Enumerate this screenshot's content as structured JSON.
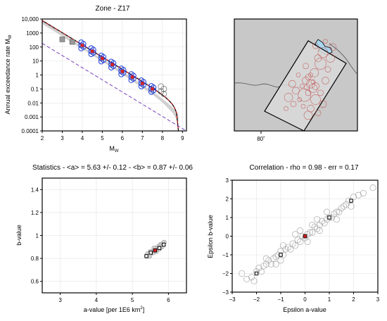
{
  "figure": {
    "title": "Zone - Z17",
    "colors": {
      "observed": "#1f3fd6",
      "mean_fit": "#d62020",
      "sample_gray": "#bdbdbd",
      "truncated": "#7a3fbf",
      "zone_fill": "#d9d9d9",
      "map_land": "#c8c8c8",
      "lake": "#a8d8f0"
    }
  },
  "chart_data": [
    {
      "id": "recurrence",
      "type": "scatter",
      "title": "Zone - Z17",
      "xlabel": "M",
      "xlabel_sub": "W",
      "ylabel": "Annual exceedance rate M",
      "ylabel_sub": "W",
      "xlim": [
        2,
        9.2
      ],
      "ylim": [
        0.0001,
        10000
      ],
      "yscale": "log",
      "xticks": [
        2,
        3,
        4,
        5,
        6,
        7,
        8,
        9
      ],
      "yticks": [
        {
          "v": 10000,
          "label": "10,000"
        },
        {
          "v": 1000,
          "label": "1000"
        },
        {
          "v": 100,
          "label": "100"
        },
        {
          "v": 10,
          "label": "10"
        },
        {
          "v": 1,
          "label": "1"
        },
        {
          "v": 0.1,
          "label": "0.1"
        },
        {
          "v": 0.01,
          "label": "0.01"
        },
        {
          "v": 0.001,
          "label": "0.001"
        },
        {
          "v": 0.0001,
          "label": "0.0001"
        }
      ],
      "grid": true,
      "mean_fit_line": {
        "a": 5.63,
        "b": 0.87,
        "mmax": 8.8
      },
      "sample_band": {
        "m": [
          2,
          3,
          4,
          5,
          6,
          7,
          7.5,
          8,
          8.5,
          8.8
        ],
        "lo": [
          4500,
          570,
          70,
          9,
          1.1,
          0.12,
          0.04,
          0.011,
          0.002,
          0.0004
        ],
        "hi": [
          7500,
          900,
          110,
          14,
          1.8,
          0.2,
          0.07,
          0.02,
          0.005,
          0.0015
        ]
      },
      "truncated_line": {
        "a": 4.0,
        "b": 0.87
      },
      "observed_points": [
        {
          "m": 3.0,
          "rate": 350,
          "level": "gray"
        },
        {
          "m": 3.5,
          "rate": 230,
          "level": "gray"
        },
        {
          "m": 4.0,
          "rate": 130
        },
        {
          "m": 4.5,
          "rate": 50
        },
        {
          "m": 5.0,
          "rate": 15
        },
        {
          "m": 5.5,
          "rate": 5.5
        },
        {
          "m": 6.0,
          "rate": 1.8
        },
        {
          "m": 6.5,
          "rate": 0.7
        },
        {
          "m": 7.0,
          "rate": 0.25
        },
        {
          "m": 7.5,
          "rate": 0.1
        },
        {
          "m": 8.0,
          "rate": 0.1,
          "level": "open"
        }
      ]
    },
    {
      "id": "map",
      "type": "map",
      "lon_label": "80˚",
      "epicenters": [
        {
          "x": 0.6,
          "y": 0.52,
          "r": 4
        },
        {
          "x": 0.62,
          "y": 0.5,
          "r": 3
        },
        {
          "x": 0.58,
          "y": 0.55,
          "r": 5
        },
        {
          "x": 0.65,
          "y": 0.48,
          "r": 6
        },
        {
          "x": 0.55,
          "y": 0.6,
          "r": 3
        },
        {
          "x": 0.7,
          "y": 0.4,
          "r": 8
        },
        {
          "x": 0.72,
          "y": 0.3,
          "r": 7
        },
        {
          "x": 0.68,
          "y": 0.35,
          "r": 5
        },
        {
          "x": 0.64,
          "y": 0.62,
          "r": 6
        },
        {
          "x": 0.6,
          "y": 0.66,
          "r": 4
        },
        {
          "x": 0.57,
          "y": 0.68,
          "r": 9
        },
        {
          "x": 0.74,
          "y": 0.55,
          "r": 5
        },
        {
          "x": 0.76,
          "y": 0.45,
          "r": 4
        },
        {
          "x": 0.53,
          "y": 0.72,
          "r": 3
        },
        {
          "x": 0.5,
          "y": 0.64,
          "r": 5
        },
        {
          "x": 0.66,
          "y": 0.72,
          "r": 7
        },
        {
          "x": 0.7,
          "y": 0.66,
          "r": 4
        },
        {
          "x": 0.62,
          "y": 0.8,
          "r": 5
        },
        {
          "x": 0.56,
          "y": 0.78,
          "r": 3
        },
        {
          "x": 0.48,
          "y": 0.76,
          "r": 4
        },
        {
          "x": 0.44,
          "y": 0.7,
          "r": 6
        },
        {
          "x": 0.78,
          "y": 0.35,
          "r": 6
        },
        {
          "x": 0.66,
          "y": 0.24,
          "r": 4
        },
        {
          "x": 0.74,
          "y": 0.2,
          "r": 3
        },
        {
          "x": 0.8,
          "y": 0.25,
          "r": 5
        },
        {
          "x": 0.58,
          "y": 0.42,
          "r": 4
        },
        {
          "x": 0.52,
          "y": 0.5,
          "r": 3
        },
        {
          "x": 0.47,
          "y": 0.58,
          "r": 5
        },
        {
          "x": 0.6,
          "y": 0.86,
          "r": 6
        },
        {
          "x": 0.68,
          "y": 0.84,
          "r": 4
        },
        {
          "x": 0.42,
          "y": 0.8,
          "r": 3
        },
        {
          "x": 0.72,
          "y": 0.76,
          "r": 5
        },
        {
          "x": 0.64,
          "y": 0.56,
          "r": 3
        },
        {
          "x": 0.66,
          "y": 0.6,
          "r": 5
        },
        {
          "x": 0.62,
          "y": 0.58,
          "r": 6
        },
        {
          "x": 0.59,
          "y": 0.61,
          "r": 4
        }
      ]
    },
    {
      "id": "ab_scatter",
      "type": "scatter",
      "title": "Statistics - <a> = 5.63 +/- 0.12 - <b> = 0.87 +/- 0.06",
      "xlabel": "a-value [per 1E6 km",
      "xlabel_sup": "2",
      "xlabel_tail": "]",
      "ylabel": "b-value",
      "xlim": [
        2.5,
        6.5
      ],
      "ylim": [
        0.5,
        1.5
      ],
      "xticks": [
        3,
        4,
        5,
        6
      ],
      "yticks": [
        0.6,
        0.8,
        1.0,
        1.2,
        1.4
      ],
      "ytick_labels": [
        "0.6",
        "0.8",
        "1",
        "1.2",
        "1.4"
      ],
      "grid": true,
      "samples": [
        [
          5.4,
          0.82
        ],
        [
          5.45,
          0.83
        ],
        [
          5.5,
          0.84
        ],
        [
          5.52,
          0.85
        ],
        [
          5.55,
          0.86
        ],
        [
          5.6,
          0.87
        ],
        [
          5.62,
          0.87
        ],
        [
          5.65,
          0.88
        ],
        [
          5.68,
          0.89
        ],
        [
          5.7,
          0.89
        ],
        [
          5.72,
          0.9
        ],
        [
          5.75,
          0.91
        ],
        [
          5.78,
          0.92
        ],
        [
          5.8,
          0.92
        ],
        [
          5.85,
          0.93
        ],
        [
          5.42,
          0.84
        ],
        [
          5.48,
          0.82
        ],
        [
          5.58,
          0.85
        ],
        [
          5.66,
          0.86
        ],
        [
          5.74,
          0.88
        ],
        [
          5.82,
          0.9
        ],
        [
          5.88,
          0.94
        ],
        [
          5.5,
          0.86
        ],
        [
          5.6,
          0.89
        ]
      ],
      "percentiles": [
        [
          5.39,
          0.82
        ],
        [
          5.51,
          0.85
        ],
        [
          5.75,
          0.89
        ],
        [
          5.87,
          0.92
        ]
      ],
      "mean": [
        5.63,
        0.87
      ]
    },
    {
      "id": "epsilon",
      "type": "scatter",
      "title": "Correlation - rho = 0.98 - err = 0.17",
      "xlabel": "Epsilon a-value",
      "ylabel": "Epsilon b-value",
      "xlim": [
        -3,
        3
      ],
      "ylim": [
        -3,
        3
      ],
      "xticks": [
        -3,
        -2,
        -1,
        0,
        1,
        2,
        3
      ],
      "yticks": [
        -3,
        -2,
        -1,
        0,
        1,
        2,
        3
      ],
      "grid": true,
      "samples": [
        [
          -2.4,
          -2.3
        ],
        [
          -2.2,
          -2.2
        ],
        [
          -2.0,
          -1.9
        ],
        [
          -1.9,
          -1.7
        ],
        [
          -1.8,
          -1.9
        ],
        [
          -1.7,
          -1.6
        ],
        [
          -1.6,
          -1.5
        ],
        [
          -1.5,
          -1.3
        ],
        [
          -1.4,
          -1.5
        ],
        [
          -1.3,
          -1.2
        ],
        [
          -1.2,
          -1.1
        ],
        [
          -1.1,
          -1.0
        ],
        [
          -1.0,
          -0.8
        ],
        [
          -0.9,
          -1.0
        ],
        [
          -0.8,
          -0.7
        ],
        [
          -0.7,
          -0.6
        ],
        [
          -0.6,
          -0.7
        ],
        [
          -0.5,
          -0.4
        ],
        [
          -0.4,
          -0.5
        ],
        [
          -0.3,
          -0.2
        ],
        [
          -0.2,
          -0.3
        ],
        [
          -0.1,
          0.0
        ],
        [
          0.0,
          -0.1
        ],
        [
          0.1,
          0.1
        ],
        [
          0.2,
          0.2
        ],
        [
          0.3,
          0.2
        ],
        [
          0.4,
          0.5
        ],
        [
          0.5,
          0.4
        ],
        [
          0.6,
          0.6
        ],
        [
          0.7,
          0.8
        ],
        [
          0.8,
          0.7
        ],
        [
          0.9,
          0.9
        ],
        [
          1.0,
          1.0
        ],
        [
          1.1,
          1.0
        ],
        [
          1.2,
          1.2
        ],
        [
          1.3,
          1.3
        ],
        [
          1.4,
          1.3
        ],
        [
          1.5,
          1.5
        ],
        [
          1.6,
          1.6
        ],
        [
          1.7,
          1.7
        ],
        [
          1.8,
          1.9
        ],
        [
          2.0,
          2.1
        ],
        [
          2.2,
          2.2
        ],
        [
          2.8,
          2.6
        ],
        [
          -1.6,
          -1.2
        ],
        [
          -0.9,
          -0.5
        ],
        [
          0.3,
          0.6
        ],
        [
          0.9,
          1.3
        ],
        [
          -0.4,
          0.1
        ],
        [
          1.3,
          0.9
        ],
        [
          -1.2,
          -1.5
        ],
        [
          0.6,
          0.3
        ],
        [
          -2.6,
          -2.0
        ],
        [
          -0.2,
          0.3
        ],
        [
          1.9,
          1.6
        ],
        [
          -1.0,
          -1.3
        ],
        [
          0.1,
          -0.3
        ],
        [
          2.4,
          2.3
        ],
        [
          -2.1,
          -2.4
        ],
        [
          0.5,
          0.9
        ]
      ],
      "percentiles": [
        [
          -2.0,
          -2.0
        ],
        [
          -1.0,
          -1.0
        ],
        [
          1.0,
          1.0
        ],
        [
          1.9,
          1.9
        ]
      ],
      "mean": [
        0.0,
        0.0
      ]
    }
  ]
}
